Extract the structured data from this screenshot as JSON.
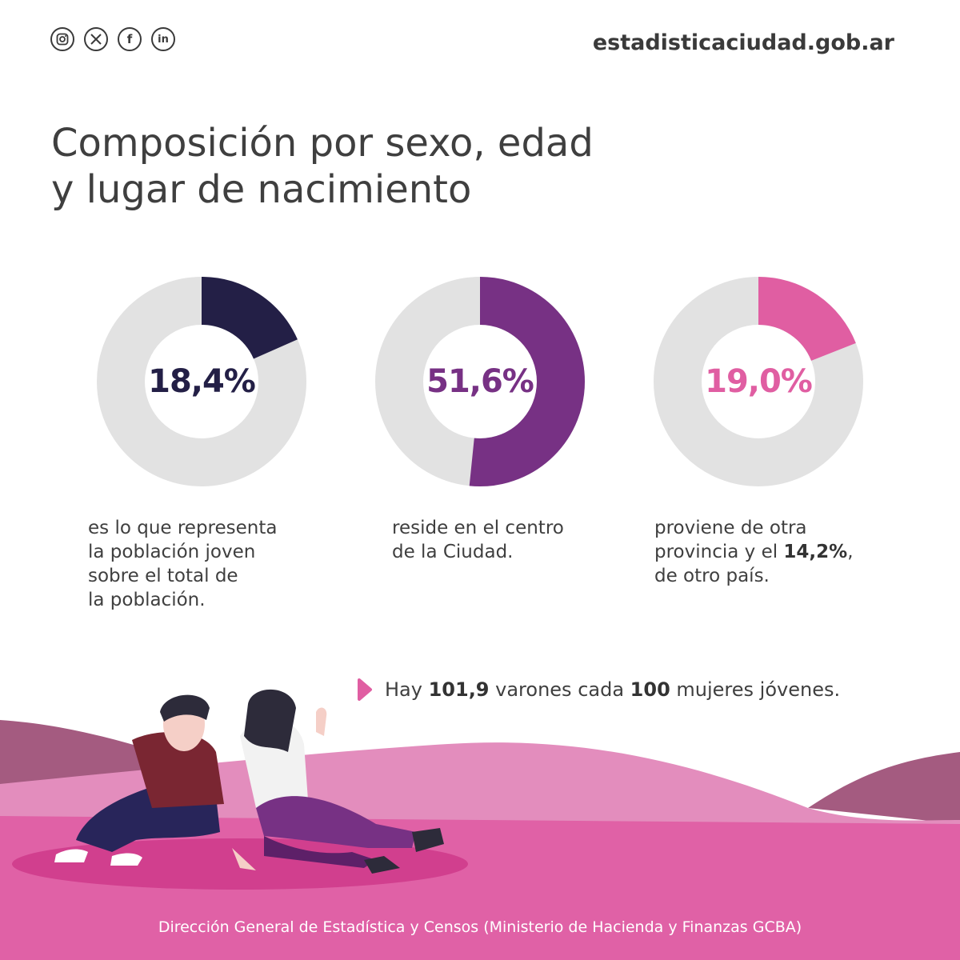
{
  "header": {
    "social": [
      {
        "icon": "instagram-icon",
        "glyph": "◎"
      },
      {
        "icon": "x-icon",
        "glyph": "X"
      },
      {
        "icon": "facebook-icon",
        "glyph": "f"
      },
      {
        "icon": "linkedin-icon",
        "glyph": "in"
      }
    ],
    "site": "estadisticaciudad.gob.ar"
  },
  "title": {
    "line1": "Composición por sexo, edad",
    "line2": "y lugar de nacimiento"
  },
  "stats": [
    {
      "value": 18.4,
      "label": "18,4%",
      "color": "#231f46",
      "description": [
        "es lo que representa",
        "la población joven",
        "sobre el total de",
        "la población."
      ]
    },
    {
      "value": 51.6,
      "label": "51,6%",
      "color": "#773184",
      "description": [
        "reside en el centro",
        "de la Ciudad."
      ]
    },
    {
      "value": 19.0,
      "label": "19,0%",
      "color": "#e05ea2",
      "description_parts": {
        "line1": "proviene de otra",
        "line2_pre": "provincia y el ",
        "line2_bold": "14,2%",
        "line2_post": ",",
        "line3": "de otro país."
      }
    }
  ],
  "ratio": {
    "pre": "Hay ",
    "bold1": "101,9",
    "mid": " varones cada ",
    "bold2": "100",
    "post": " mujeres jóvenes."
  },
  "colors": {
    "track": "#e2e2e2",
    "arrow": "#e05ea2",
    "hill_dark": "#a45b80",
    "hill_light": "#e38dbd",
    "ground": "#e061a6"
  },
  "footer": "Dirección General de Estadística y Censos (Ministerio de Hacienda y Finanzas GCBA)"
}
